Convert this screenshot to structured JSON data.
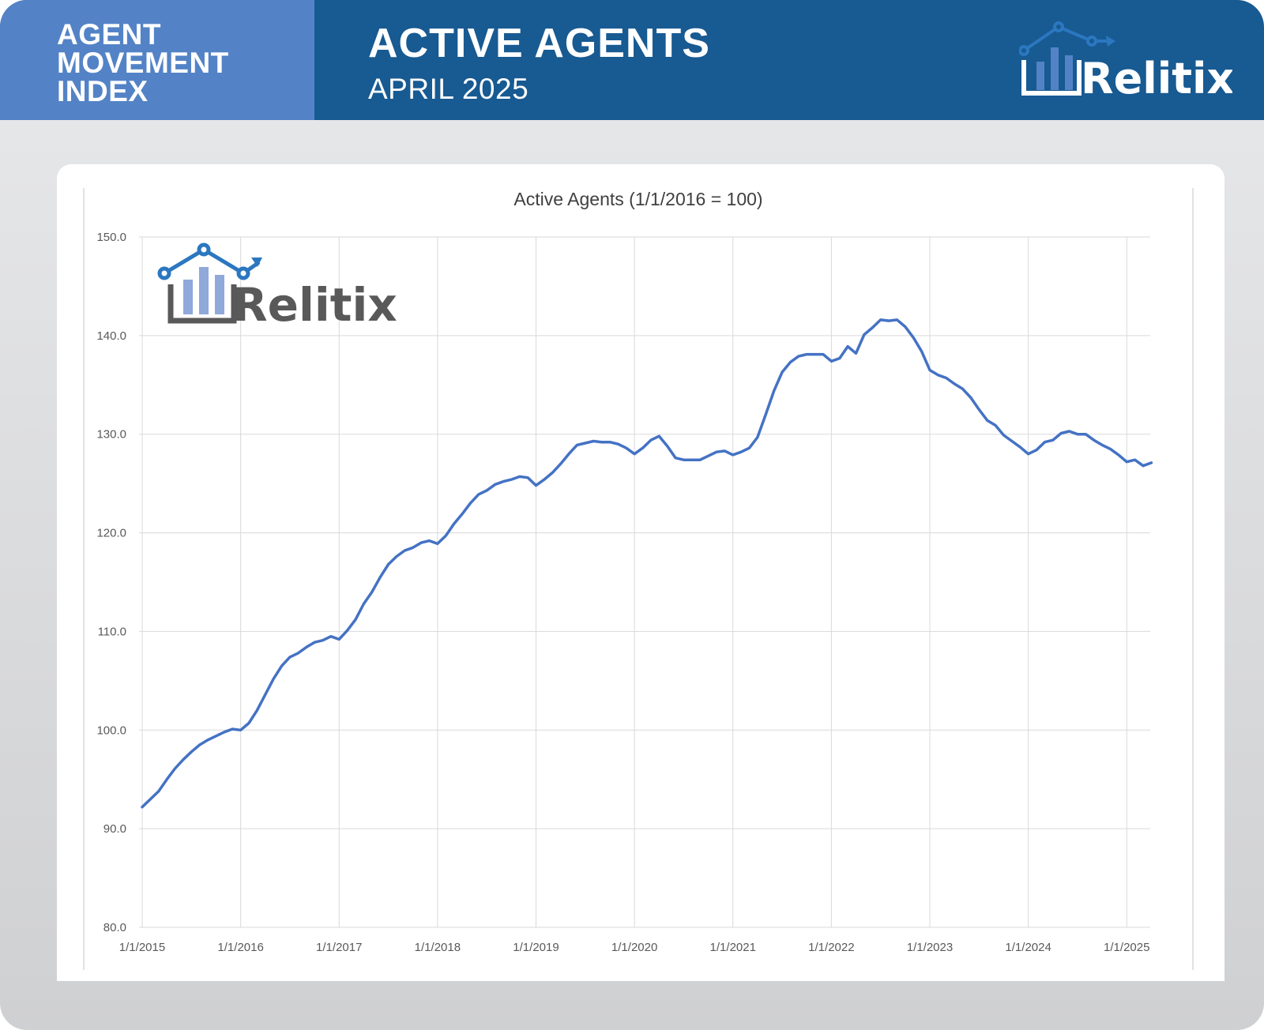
{
  "header": {
    "index_title_lines": [
      "AGENT",
      "MOVEMENT",
      "INDEX"
    ],
    "title": "ACTIVE AGENTS",
    "subtitle": "APRIL 2025",
    "brand_name": "Relitix"
  },
  "colors": {
    "header_dark": "#185a92",
    "header_light": "#5383c6",
    "series_line": "#4472c4",
    "logo_blue": "#2b77c0",
    "logo_bar": "#8fa9db",
    "logo_gray": "#595959"
  },
  "chart_data": {
    "type": "line",
    "title": "Active Agents (1/1/2016 = 100)",
    "xlabel": "",
    "ylabel": "",
    "ylim": [
      80,
      150
    ],
    "y_ticks": [
      80,
      90,
      100,
      110,
      120,
      130,
      140,
      150
    ],
    "y_tick_labels": [
      "80.0",
      "90.0",
      "100.0",
      "110.0",
      "120.0",
      "130.0",
      "140.0",
      "150.0"
    ],
    "x_tick_labels": [
      "1/1/2015",
      "1/1/2016",
      "1/1/2017",
      "1/1/2018",
      "1/1/2019",
      "1/1/2020",
      "1/1/2021",
      "1/1/2022",
      "1/1/2023",
      "1/1/2024",
      "1/1/2025"
    ],
    "x_range": [
      "2015-01",
      "2025-04"
    ],
    "grid": true,
    "legend": "none",
    "watermark": "Relitix",
    "series": [
      {
        "name": "",
        "start": "2015-01",
        "frequency": "monthly",
        "values": [
          92.2,
          93.0,
          93.8,
          95.0,
          96.1,
          97.0,
          97.8,
          98.5,
          99.0,
          99.4,
          99.8,
          100.1,
          100.0,
          100.7,
          102.0,
          103.6,
          105.2,
          106.5,
          107.4,
          107.8,
          108.4,
          108.9,
          109.1,
          109.5,
          109.2,
          110.1,
          111.2,
          112.8,
          114.0,
          115.5,
          116.8,
          117.6,
          118.2,
          118.5,
          119.0,
          119.2,
          118.9,
          119.7,
          120.9,
          121.9,
          123.0,
          123.9,
          124.3,
          124.9,
          125.2,
          125.4,
          125.7,
          125.6,
          124.8,
          125.4,
          126.1,
          127.0,
          128.0,
          128.9,
          129.1,
          129.3,
          129.2,
          129.2,
          129.0,
          128.6,
          128.0,
          128.6,
          129.4,
          129.8,
          128.8,
          127.6,
          127.4,
          127.4,
          127.4,
          127.8,
          128.2,
          128.3,
          127.9,
          128.2,
          128.6,
          129.7,
          132.0,
          134.4,
          136.3,
          137.3,
          137.9,
          138.1,
          138.1,
          138.1,
          137.4,
          137.7,
          138.9,
          138.2,
          140.1,
          140.8,
          141.6,
          141.5,
          141.6,
          140.9,
          139.8,
          138.4,
          136.5,
          136.0,
          135.7,
          135.1,
          134.6,
          133.7,
          132.5,
          131.4,
          130.9,
          129.9,
          129.3,
          128.7,
          128.0,
          128.4,
          129.2,
          129.4,
          130.1,
          130.3,
          130.0,
          130.0,
          129.4,
          128.9,
          128.5,
          127.9,
          127.2,
          127.4,
          126.8,
          127.1
        ]
      }
    ]
  }
}
